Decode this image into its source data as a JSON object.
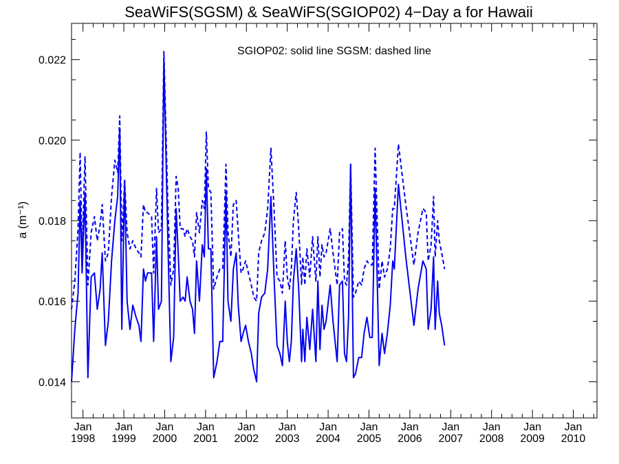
{
  "chart_data": {
    "type": "line",
    "title": "SeaWiFS(SGSM) & SeaWiFS(SGIOP02) 4−Day a for Hawaii",
    "annotation": "SGIOP02: solid line   SGSM: dashed line",
    "ylabel": "a (m⁻¹)",
    "xlabel": "",
    "xlim": [
      1997.72,
      2010.58
    ],
    "ylim": [
      0.0131,
      0.0229
    ],
    "grid": false,
    "legend": "none",
    "yticks": [
      0.014,
      0.016,
      0.018,
      0.02,
      0.022
    ],
    "ytick_labels": [
      "0.014",
      "0.016",
      "0.018",
      "0.020",
      "0.022"
    ],
    "xticks": [
      {
        "x": 1998.0,
        "month": "Jan",
        "year": "1998"
      },
      {
        "x": 1999.0,
        "month": "Jan",
        "year": "1999"
      },
      {
        "x": 2000.0,
        "month": "Jan",
        "year": "2000"
      },
      {
        "x": 2001.0,
        "month": "Jan",
        "year": "2001"
      },
      {
        "x": 2002.0,
        "month": "Jan",
        "year": "2002"
      },
      {
        "x": 2003.0,
        "month": "Jan",
        "year": "2003"
      },
      {
        "x": 2004.0,
        "month": "Jan",
        "year": "2004"
      },
      {
        "x": 2005.0,
        "month": "Jan",
        "year": "2005"
      },
      {
        "x": 2006.0,
        "month": "Jan",
        "year": "2006"
      },
      {
        "x": 2007.0,
        "month": "Jan",
        "year": "2007"
      },
      {
        "x": 2008.0,
        "month": "Jan",
        "year": "2008"
      },
      {
        "x": 2009.0,
        "month": "Jan",
        "year": "2009"
      },
      {
        "x": 2010.0,
        "month": "Jan",
        "year": "2010"
      }
    ],
    "series": [
      {
        "name": "SGIOP02",
        "style": "solid",
        "color": "#0000ee",
        "points": [
          [
            1997.72,
            0.014
          ],
          [
            1997.8,
            0.0153
          ],
          [
            1997.88,
            0.0162
          ],
          [
            1997.93,
            0.0185
          ],
          [
            1997.98,
            0.0167
          ],
          [
            1998.05,
            0.0187
          ],
          [
            1998.12,
            0.0141
          ],
          [
            1998.2,
            0.0166
          ],
          [
            1998.28,
            0.0167
          ],
          [
            1998.35,
            0.0158
          ],
          [
            1998.42,
            0.0163
          ],
          [
            1998.47,
            0.0172
          ],
          [
            1998.55,
            0.0149
          ],
          [
            1998.62,
            0.0155
          ],
          [
            1998.7,
            0.017
          ],
          [
            1998.78,
            0.018
          ],
          [
            1998.85,
            0.0186
          ],
          [
            1998.9,
            0.0203
          ],
          [
            1998.95,
            0.0153
          ],
          [
            1999.02,
            0.019
          ],
          [
            1999.08,
            0.016
          ],
          [
            1999.15,
            0.0153
          ],
          [
            1999.22,
            0.0159
          ],
          [
            1999.3,
            0.0156
          ],
          [
            1999.37,
            0.0154
          ],
          [
            1999.42,
            0.015
          ],
          [
            1999.48,
            0.0168
          ],
          [
            1999.53,
            0.0165
          ],
          [
            1999.58,
            0.0167
          ],
          [
            1999.68,
            0.0167
          ],
          [
            1999.73,
            0.015
          ],
          [
            1999.8,
            0.0176
          ],
          [
            1999.85,
            0.0158
          ],
          [
            1999.92,
            0.016
          ],
          [
            1999.98,
            0.022
          ],
          [
            2000.08,
            0.0174
          ],
          [
            2000.15,
            0.0145
          ],
          [
            2000.22,
            0.0151
          ],
          [
            2000.28,
            0.0183
          ],
          [
            2000.33,
            0.0172
          ],
          [
            2000.38,
            0.016
          ],
          [
            2000.45,
            0.0161
          ],
          [
            2000.5,
            0.016
          ],
          [
            2000.55,
            0.0166
          ],
          [
            2000.62,
            0.016
          ],
          [
            2000.68,
            0.0158
          ],
          [
            2000.73,
            0.0152
          ],
          [
            2000.78,
            0.017
          ],
          [
            2000.85,
            0.016
          ],
          [
            2000.92,
            0.0174
          ],
          [
            2000.97,
            0.0171
          ],
          [
            2001.02,
            0.0193
          ],
          [
            2001.07,
            0.0173
          ],
          [
            2001.13,
            0.0173
          ],
          [
            2001.2,
            0.0141
          ],
          [
            2001.28,
            0.0145
          ],
          [
            2001.35,
            0.015
          ],
          [
            2001.42,
            0.015
          ],
          [
            2001.5,
            0.0187
          ],
          [
            2001.55,
            0.016
          ],
          [
            2001.62,
            0.0155
          ],
          [
            2001.68,
            0.0168
          ],
          [
            2001.75,
            0.0172
          ],
          [
            2001.8,
            0.0159
          ],
          [
            2001.87,
            0.015
          ],
          [
            2001.92,
            0.0152
          ],
          [
            2001.98,
            0.0154
          ],
          [
            2002.05,
            0.015
          ],
          [
            2002.12,
            0.0147
          ],
          [
            2002.18,
            0.0143
          ],
          [
            2002.25,
            0.014
          ],
          [
            2002.3,
            0.0157
          ],
          [
            2002.37,
            0.0161
          ],
          [
            2002.45,
            0.0162
          ],
          [
            2002.52,
            0.0168
          ],
          [
            2002.6,
            0.0186
          ],
          [
            2002.68,
            0.0165
          ],
          [
            2002.75,
            0.0149
          ],
          [
            2002.82,
            0.0147
          ],
          [
            2002.88,
            0.0144
          ],
          [
            2002.95,
            0.016
          ],
          [
            2003.0,
            0.015
          ],
          [
            2003.05,
            0.0145
          ],
          [
            2003.1,
            0.015
          ],
          [
            2003.15,
            0.0165
          ],
          [
            2003.22,
            0.0173
          ],
          [
            2003.28,
            0.0163
          ],
          [
            2003.35,
            0.0145
          ],
          [
            2003.38,
            0.0153
          ],
          [
            2003.43,
            0.0145
          ],
          [
            2003.48,
            0.0156
          ],
          [
            2003.55,
            0.0148
          ],
          [
            2003.62,
            0.0158
          ],
          [
            2003.7,
            0.0145
          ],
          [
            2003.75,
            0.0165
          ],
          [
            2003.8,
            0.0148
          ],
          [
            2003.85,
            0.0159
          ],
          [
            2003.9,
            0.0153
          ],
          [
            2003.95,
            0.0155
          ],
          [
            2004.05,
            0.0164
          ],
          [
            2004.12,
            0.0155
          ],
          [
            2004.22,
            0.0145
          ],
          [
            2004.28,
            0.0164
          ],
          [
            2004.35,
            0.0165
          ],
          [
            2004.4,
            0.0147
          ],
          [
            2004.45,
            0.0145
          ],
          [
            2004.5,
            0.0156
          ],
          [
            2004.55,
            0.0194
          ],
          [
            2004.62,
            0.0141
          ],
          [
            2004.67,
            0.0142
          ],
          [
            2004.75,
            0.0146
          ],
          [
            2004.82,
            0.0146
          ],
          [
            2004.88,
            0.0152
          ],
          [
            2004.95,
            0.0156
          ],
          [
            2005.02,
            0.0151
          ],
          [
            2005.08,
            0.0151
          ],
          [
            2005.15,
            0.0188
          ],
          [
            2005.25,
            0.0144
          ],
          [
            2005.32,
            0.0152
          ],
          [
            2005.38,
            0.0147
          ],
          [
            2005.45,
            0.0152
          ],
          [
            2005.52,
            0.0159
          ],
          [
            2005.58,
            0.017
          ],
          [
            2005.62,
            0.0168
          ],
          [
            2005.72,
            0.0189
          ],
          [
            2005.9,
            0.0171
          ],
          [
            2006.1,
            0.0154
          ],
          [
            2006.2,
            0.0163
          ],
          [
            2006.32,
            0.017
          ],
          [
            2006.4,
            0.0168
          ],
          [
            2006.45,
            0.0153
          ],
          [
            2006.52,
            0.0158
          ],
          [
            2006.58,
            0.0171
          ],
          [
            2006.62,
            0.0153
          ],
          [
            2006.68,
            0.0165
          ],
          [
            2006.72,
            0.0157
          ],
          [
            2006.78,
            0.0154
          ],
          [
            2006.85,
            0.0149
          ]
        ]
      },
      {
        "name": "SGSM",
        "style": "dashed",
        "color": "#0000ee",
        "points": [
          [
            1997.72,
            0.0158
          ],
          [
            1997.8,
            0.0165
          ],
          [
            1997.88,
            0.0178
          ],
          [
            1997.93,
            0.0197
          ],
          [
            1997.98,
            0.0172
          ],
          [
            1998.05,
            0.0196
          ],
          [
            1998.12,
            0.0164
          ],
          [
            1998.2,
            0.0177
          ],
          [
            1998.28,
            0.0181
          ],
          [
            1998.35,
            0.0175
          ],
          [
            1998.42,
            0.0179
          ],
          [
            1998.47,
            0.0184
          ],
          [
            1998.55,
            0.017
          ],
          [
            1998.62,
            0.0172
          ],
          [
            1998.7,
            0.0186
          ],
          [
            1998.78,
            0.0195
          ],
          [
            1998.85,
            0.0192
          ],
          [
            1998.9,
            0.0206
          ],
          [
            1998.95,
            0.0175
          ],
          [
            1999.02,
            0.019
          ],
          [
            1999.08,
            0.0177
          ],
          [
            1999.15,
            0.0173
          ],
          [
            1999.22,
            0.0175
          ],
          [
            1999.3,
            0.0173
          ],
          [
            1999.37,
            0.0172
          ],
          [
            1999.42,
            0.0171
          ],
          [
            1999.48,
            0.0184
          ],
          [
            1999.53,
            0.0182
          ],
          [
            1999.58,
            0.0182
          ],
          [
            1999.68,
            0.0181
          ],
          [
            1999.73,
            0.0167
          ],
          [
            1999.8,
            0.0188
          ],
          [
            1999.85,
            0.0177
          ],
          [
            1999.92,
            0.0178
          ],
          [
            1999.98,
            0.0222
          ],
          [
            2000.08,
            0.0183
          ],
          [
            2000.15,
            0.0164
          ],
          [
            2000.22,
            0.0168
          ],
          [
            2000.28,
            0.0191
          ],
          [
            2000.33,
            0.0188
          ],
          [
            2000.38,
            0.0178
          ],
          [
            2000.45,
            0.0178
          ],
          [
            2000.5,
            0.0176
          ],
          [
            2000.55,
            0.0178
          ],
          [
            2000.62,
            0.0176
          ],
          [
            2000.68,
            0.0175
          ],
          [
            2000.73,
            0.0171
          ],
          [
            2000.78,
            0.0182
          ],
          [
            2000.85,
            0.0177
          ],
          [
            2000.92,
            0.0185
          ],
          [
            2000.97,
            0.0183
          ],
          [
            2001.02,
            0.0202
          ],
          [
            2001.07,
            0.0188
          ],
          [
            2001.13,
            0.0187
          ],
          [
            2001.2,
            0.0163
          ],
          [
            2001.28,
            0.0166
          ],
          [
            2001.35,
            0.0168
          ],
          [
            2001.42,
            0.0168
          ],
          [
            2001.5,
            0.0194
          ],
          [
            2001.55,
            0.0177
          ],
          [
            2001.62,
            0.0171
          ],
          [
            2001.68,
            0.0184
          ],
          [
            2001.75,
            0.0185
          ],
          [
            2001.8,
            0.0177
          ],
          [
            2001.87,
            0.0167
          ],
          [
            2001.92,
            0.0168
          ],
          [
            2001.98,
            0.017
          ],
          [
            2002.05,
            0.0167
          ],
          [
            2002.12,
            0.0164
          ],
          [
            2002.18,
            0.0161
          ],
          [
            2002.25,
            0.016
          ],
          [
            2002.3,
            0.0172
          ],
          [
            2002.37,
            0.0175
          ],
          [
            2002.45,
            0.0177
          ],
          [
            2002.52,
            0.0183
          ],
          [
            2002.6,
            0.0198
          ],
          [
            2002.68,
            0.0182
          ],
          [
            2002.75,
            0.0166
          ],
          [
            2002.82,
            0.0165
          ],
          [
            2002.88,
            0.0162
          ],
          [
            2002.95,
            0.0175
          ],
          [
            2003.0,
            0.0166
          ],
          [
            2003.05,
            0.0163
          ],
          [
            2003.1,
            0.0168
          ],
          [
            2003.15,
            0.018
          ],
          [
            2003.22,
            0.0187
          ],
          [
            2003.28,
            0.0178
          ],
          [
            2003.35,
            0.0164
          ],
          [
            2003.38,
            0.0171
          ],
          [
            2003.43,
            0.0164
          ],
          [
            2003.48,
            0.0173
          ],
          [
            2003.55,
            0.0166
          ],
          [
            2003.62,
            0.0176
          ],
          [
            2003.7,
            0.0165
          ],
          [
            2003.75,
            0.0176
          ],
          [
            2003.8,
            0.0166
          ],
          [
            2003.85,
            0.0174
          ],
          [
            2003.9,
            0.0171
          ],
          [
            2003.95,
            0.0172
          ],
          [
            2004.05,
            0.0178
          ],
          [
            2004.12,
            0.0172
          ],
          [
            2004.22,
            0.0164
          ],
          [
            2004.28,
            0.0177
          ],
          [
            2004.35,
            0.0178
          ],
          [
            2004.4,
            0.0165
          ],
          [
            2004.45,
            0.0164
          ],
          [
            2004.5,
            0.0171
          ],
          [
            2004.55,
            0.0194
          ],
          [
            2004.62,
            0.0161
          ],
          [
            2004.67,
            0.0162
          ],
          [
            2004.75,
            0.0165
          ],
          [
            2004.82,
            0.0164
          ],
          [
            2004.88,
            0.0168
          ],
          [
            2004.95,
            0.017
          ],
          [
            2005.02,
            0.0169
          ],
          [
            2005.08,
            0.0169
          ],
          [
            2005.15,
            0.0198
          ],
          [
            2005.25,
            0.0163
          ],
          [
            2005.32,
            0.017
          ],
          [
            2005.38,
            0.0166
          ],
          [
            2005.45,
            0.0168
          ],
          [
            2005.52,
            0.0173
          ],
          [
            2005.58,
            0.0183
          ],
          [
            2005.62,
            0.0183
          ],
          [
            2005.72,
            0.0199
          ],
          [
            2005.9,
            0.0184
          ],
          [
            2006.1,
            0.0169
          ],
          [
            2006.2,
            0.0177
          ],
          [
            2006.32,
            0.0183
          ],
          [
            2006.4,
            0.0182
          ],
          [
            2006.45,
            0.017
          ],
          [
            2006.52,
            0.0174
          ],
          [
            2006.58,
            0.0186
          ],
          [
            2006.62,
            0.0171
          ],
          [
            2006.68,
            0.018
          ],
          [
            2006.72,
            0.0175
          ],
          [
            2006.78,
            0.0172
          ],
          [
            2006.85,
            0.0168
          ]
        ]
      }
    ]
  }
}
